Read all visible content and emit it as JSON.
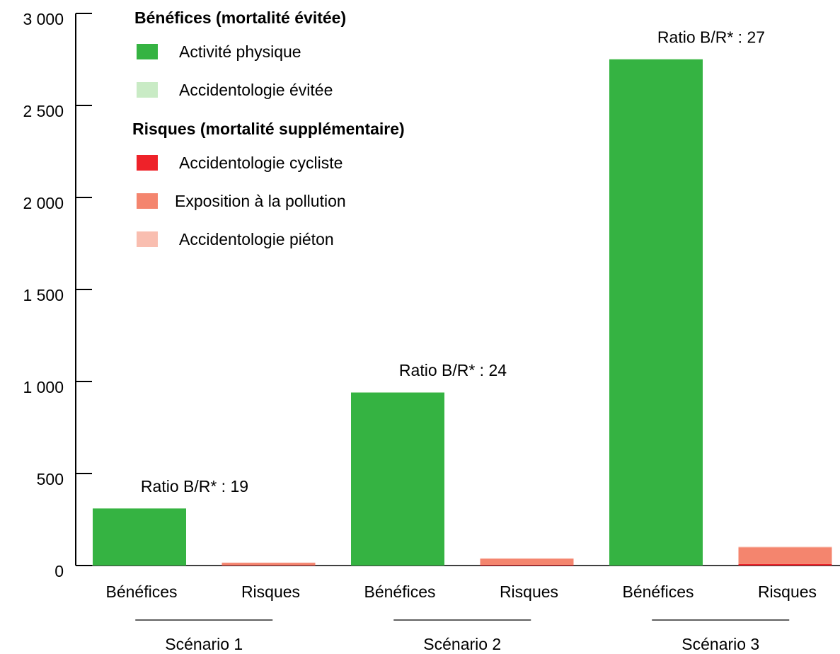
{
  "chart_data": {
    "type": "stacked_bar",
    "categories": [
      "Bénéfices",
      "Risques",
      "Bénéfices",
      "Risques",
      "Bénéfices",
      "Risques"
    ],
    "groups": [
      "Scénario 1",
      "Scénario 2",
      "Scénario 3"
    ],
    "legend_titles": [
      "Bénéfices (mortalité évitée)",
      "Risques (mortalité supplémentaire)"
    ],
    "series": [
      {
        "name": "Activité physique",
        "color": "#35b342",
        "values": [
          310,
          null,
          940,
          null,
          2750,
          null
        ]
      },
      {
        "name": "Accidentologie évitée",
        "color": "#c9ebc5",
        "values": [
          1,
          null,
          2,
          null,
          3,
          null
        ]
      },
      {
        "name": "Accidentologie cycliste",
        "color": "#ee2229",
        "values": [
          null,
          2,
          null,
          4,
          null,
          8
        ]
      },
      {
        "name": "Exposition à la pollution",
        "color": "#f4856e",
        "values": [
          null,
          13,
          null,
          33,
          null,
          90
        ]
      },
      {
        "name": "Accidentologie piéton",
        "color": "#f9beb0",
        "values": [
          null,
          1,
          null,
          2,
          null,
          4
        ]
      }
    ],
    "annotations": [
      "Ratio B/R* : 19",
      "Ratio B/R* : 24",
      "Ratio B/R* : 27"
    ],
    "ylim": [
      0,
      3000
    ],
    "yticks": [
      0,
      500,
      {
        "value": 1000,
        "label": "1 000"
      },
      {
        "value": 1500,
        "label": "1 500"
      },
      {
        "value": 2000,
        "label": "2 000"
      },
      {
        "value": 2500,
        "label": "2 500"
      },
      {
        "value": 3000,
        "label": "3 000"
      }
    ]
  }
}
